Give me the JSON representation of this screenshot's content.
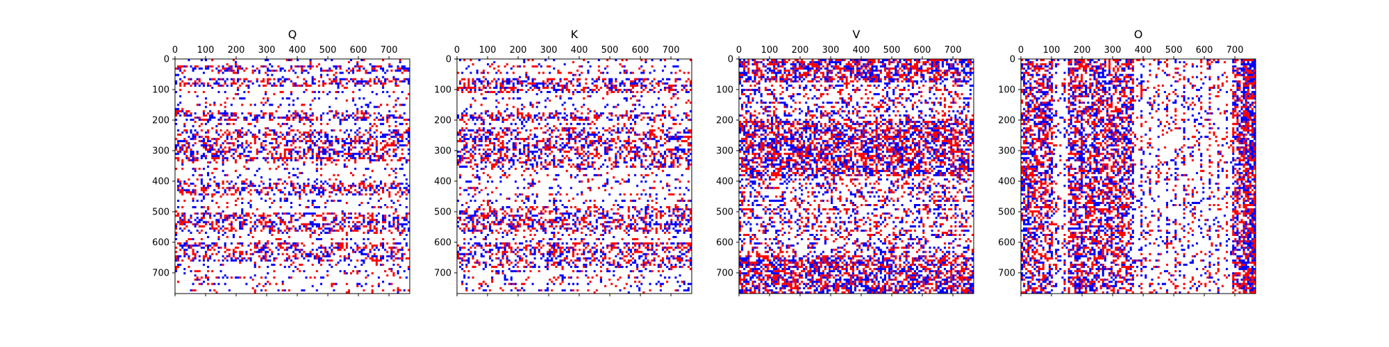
{
  "chart_data": [
    {
      "type": "heatmap",
      "title": "Q",
      "pattern": "rows",
      "x_ticks": [
        0,
        100,
        200,
        300,
        400,
        500,
        600,
        700
      ],
      "y_ticks": [
        0,
        100,
        200,
        300,
        400,
        500,
        600,
        700
      ],
      "xlim": [
        0,
        768
      ],
      "ylim": [
        768,
        0
      ],
      "x_axis_position": "top",
      "grid": false,
      "legend": "none",
      "colors": {
        "positive": "#ff0000",
        "negative": "#0000ff",
        "zero": "#ffffff"
      },
      "dense_row_bands": [
        [
          20,
          40
        ],
        [
          60,
          90
        ],
        [
          170,
          200
        ],
        [
          230,
          330
        ],
        [
          400,
          440
        ],
        [
          500,
          560
        ],
        [
          600,
          660
        ]
      ]
    },
    {
      "type": "heatmap",
      "title": "K",
      "pattern": "rows",
      "x_ticks": [
        0,
        100,
        200,
        300,
        400,
        500,
        600,
        700
      ],
      "y_ticks": [
        0,
        100,
        200,
        300,
        400,
        500,
        600,
        700
      ],
      "xlim": [
        0,
        768
      ],
      "ylim": [
        768,
        0
      ],
      "x_axis_position": "top",
      "grid": false,
      "legend": "none",
      "colors": {
        "positive": "#ff0000",
        "negative": "#0000ff",
        "zero": "#ffffff"
      },
      "dense_row_bands": [
        [
          60,
          110
        ],
        [
          170,
          200
        ],
        [
          220,
          350
        ],
        [
          480,
          560
        ],
        [
          600,
          680
        ]
      ]
    },
    {
      "type": "heatmap",
      "title": "V",
      "pattern": "bands",
      "x_ticks": [
        0,
        100,
        200,
        300,
        400,
        500,
        600,
        700
      ],
      "y_ticks": [
        0,
        100,
        200,
        300,
        400,
        500,
        600,
        700
      ],
      "xlim": [
        0,
        768
      ],
      "ylim": [
        768,
        0
      ],
      "x_axis_position": "top",
      "grid": false,
      "legend": "none",
      "colors": {
        "positive": "#ff0000",
        "negative": "#0000ff",
        "zero": "#ffffff"
      },
      "dense_row_bands": [
        [
          0,
          70
        ],
        [
          200,
          380
        ],
        [
          640,
          768
        ]
      ]
    },
    {
      "type": "heatmap",
      "title": "O",
      "pattern": "columns",
      "x_ticks": [
        0,
        100,
        200,
        300,
        400,
        500,
        600,
        700
      ],
      "y_ticks": [
        0,
        100,
        200,
        300,
        400,
        500,
        600,
        700
      ],
      "xlim": [
        0,
        768
      ],
      "ylim": [
        768,
        0
      ],
      "x_axis_position": "top",
      "grid": false,
      "legend": "none",
      "colors": {
        "positive": "#ff0000",
        "negative": "#0000ff",
        "zero": "#ffffff"
      },
      "dense_column_bands": [
        [
          0,
          100
        ],
        [
          150,
          370
        ],
        [
          690,
          768
        ]
      ]
    }
  ]
}
